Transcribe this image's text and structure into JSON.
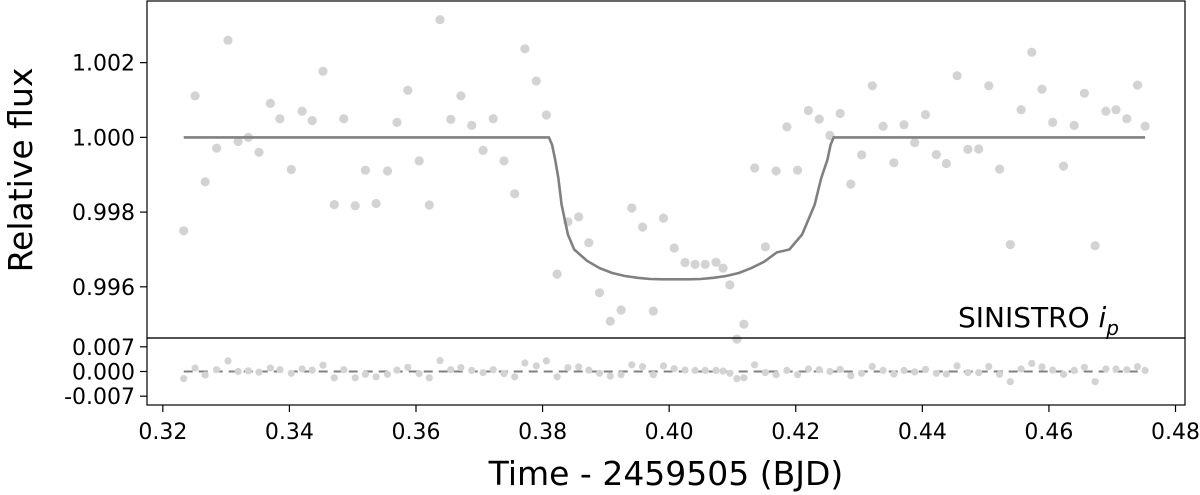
{
  "chart_data": {
    "type": "scatter",
    "xlabel": "Time - 2459505 (BJD)",
    "ylabel": "Relative flux",
    "annotation": "SINISTRO i_p",
    "xlim": [
      0.3175,
      0.4815
    ],
    "xticks": [
      0.32,
      0.34,
      0.36,
      0.38,
      0.4,
      0.42,
      0.44,
      0.46,
      0.48
    ],
    "xtick_labels": [
      "0.32",
      "0.34",
      "0.36",
      "0.38",
      "0.40",
      "0.42",
      "0.44",
      "0.46",
      "0.48"
    ],
    "colors": {
      "points": "#d3d3d3",
      "model": "#808080",
      "frame": "#000000"
    },
    "top_panel": {
      "ylim": [
        0.99463,
        1.00365
      ],
      "yticks": [
        0.996,
        0.998,
        1.0,
        1.002
      ],
      "ytick_labels": [
        "0.996",
        "0.998",
        "1.000",
        "1.002"
      ],
      "series": [
        {
          "type": "scatter",
          "x": [
            0.3233,
            0.3251,
            0.3267,
            0.3285,
            0.3303,
            0.3319,
            0.3335,
            0.3352,
            0.337,
            0.3385,
            0.3403,
            0.342,
            0.3436,
            0.3453,
            0.3471,
            0.3486,
            0.3504,
            0.352,
            0.3537,
            0.3555,
            0.357,
            0.3587,
            0.3605,
            0.3621,
            0.3638,
            0.3655,
            0.3671,
            0.3688,
            0.3706,
            0.3722,
            0.3739,
            0.3756,
            0.3772,
            0.379,
            0.3806,
            0.3823,
            0.384,
            0.3857,
            0.3873,
            0.389,
            0.3907,
            0.3924,
            0.3941,
            0.3958,
            0.3975,
            0.3991,
            0.4008,
            0.4025,
            0.4041,
            0.4057,
            0.4074,
            0.4085,
            0.4096,
            0.4107,
            0.4118,
            0.4135,
            0.4152,
            0.4169,
            0.4186,
            0.4203,
            0.422,
            0.4237,
            0.4254,
            0.427,
            0.4287,
            0.4304,
            0.4321,
            0.4338,
            0.4355,
            0.4371,
            0.4388,
            0.4405,
            0.4422,
            0.4438,
            0.4455,
            0.4472,
            0.4489,
            0.4505,
            0.4522,
            0.4539,
            0.4556,
            0.4573,
            0.4589,
            0.4606,
            0.4623,
            0.464,
            0.4656,
            0.4673,
            0.469,
            0.4706,
            0.4723,
            0.474,
            0.4752
          ],
          "y": [
            0.9975,
            1.00111,
            0.99881,
            0.99971,
            1.0026,
            0.99989,
            1.0,
            0.9996,
            1.00091,
            1.0005,
            0.99914,
            1.0007,
            1.00045,
            1.00177,
            0.9982,
            1.0005,
            0.99817,
            0.99912,
            0.99823,
            0.9991,
            1.0004,
            1.00126,
            0.99937,
            0.99819,
            1.00315,
            1.00048,
            1.00111,
            1.00032,
            0.99965,
            1.0005,
            0.99937,
            0.99849,
            1.00237,
            1.00151,
            1.0006,
            0.99634,
            0.99774,
            0.99787,
            0.99718,
            0.99584,
            0.99508,
            0.99538,
            0.99811,
            0.9976,
            0.99535,
            0.99784,
            0.99704,
            0.99665,
            0.9966,
            0.9966,
            0.99666,
            0.9965,
            0.99605,
            0.9946,
            0.995,
            0.99918,
            0.99707,
            0.9991,
            1.00028,
            0.99912,
            1.00072,
            1.00049,
            1.00005,
            1.00064,
            0.99875,
            0.99953,
            1.00138,
            1.0003,
            0.99932,
            1.00034,
            0.99986,
            1.00061,
            0.99954,
            0.9993,
            1.00165,
            0.99968,
            0.99969,
            1.00138,
            0.99915,
            0.99713,
            1.00074,
            1.00228,
            1.00129,
            1.0004,
            0.99923,
            1.00032,
            1.00118,
            0.9971,
            1.0007,
            1.00074,
            1.0005,
            1.0014,
            1.0003
          ]
        },
        {
          "type": "line",
          "name": "",
          "x": [
            0.3233,
            0.381,
            0.3815,
            0.382,
            0.3825,
            0.383,
            0.384,
            0.385,
            0.387,
            0.389,
            0.391,
            0.393,
            0.395,
            0.397,
            0.399,
            0.401,
            0.403,
            0.405,
            0.407,
            0.409,
            0.411,
            0.413,
            0.415,
            0.417,
            0.419,
            0.421,
            0.423,
            0.424,
            0.425,
            0.4255,
            0.426,
            0.4265,
            0.427,
            0.4275,
            0.4752
          ],
          "y": [
            1.0,
            1.0,
            0.9998,
            0.9994,
            0.9989,
            0.9982,
            0.9974,
            0.997,
            0.9967,
            0.9965,
            0.99637,
            0.99629,
            0.99624,
            0.99621,
            0.9962,
            0.9962,
            0.9962,
            0.99621,
            0.99624,
            0.99629,
            0.99637,
            0.9965,
            0.99667,
            0.99692,
            0.997,
            0.9974,
            0.9982,
            0.9989,
            0.9994,
            0.9998,
            1.0,
            1.0,
            1.0,
            1.0,
            1.0
          ]
        }
      ]
    },
    "bottom_panel": {
      "ylim": [
        -0.0095,
        0.0095
      ],
      "yticks": [
        0.007,
        0.0,
        -0.007
      ],
      "ytick_labels": [
        "0.007",
        "0.000",
        "-0.007"
      ],
      "zero_line": 0.0,
      "residuals": [
        -0.002,
        0.001,
        -0.001,
        0.0005,
        0.003,
        0.0,
        0.0002,
        -0.0002,
        0.001,
        0.0005,
        -0.0005,
        0.0007,
        0.0004,
        0.0018,
        -0.0018,
        0.0005,
        -0.0018,
        -0.0008,
        -0.0015,
        -0.0008,
        0.0004,
        0.0012,
        -0.0006,
        -0.0018,
        0.0031,
        0.0005,
        0.0011,
        0.0003,
        -0.0003,
        0.0005,
        -0.0006,
        -0.0015,
        0.0024,
        0.0016,
        0.003,
        -0.0015,
        0.0011,
        0.0013,
        0.0004,
        -0.0005,
        -0.0013,
        -0.0009,
        0.0019,
        0.0014,
        -0.0009,
        0.0016,
        0.0008,
        0.0004,
        0.0003,
        0.0003,
        0.0003,
        0.0001,
        -0.0005,
        -0.002,
        -0.0018,
        0.0019,
        -0.0003,
        -0.0009,
        0.0003,
        -0.0009,
        0.0007,
        0.0005,
        0.0,
        0.0006,
        -0.0012,
        -0.0005,
        0.0014,
        0.0003,
        -0.0007,
        0.0003,
        -0.0001,
        0.0006,
        -0.0005,
        -0.0007,
        0.0016,
        -0.0003,
        -0.0003,
        0.0014,
        -0.0008,
        -0.0029,
        0.0007,
        0.0023,
        0.0013,
        0.0004,
        -0.0008,
        0.0003,
        0.0012,
        -0.0029,
        0.0007,
        0.0007,
        0.0005,
        0.0014,
        0.0003
      ]
    }
  }
}
